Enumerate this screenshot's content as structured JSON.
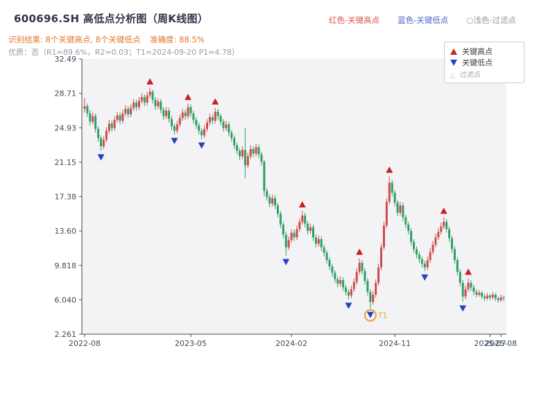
{
  "header": {
    "title": "600696.SH 高低点分析图（周K线图）",
    "legend_high": "红色-关键高点",
    "legend_low": "蓝色-关键低点",
    "legend_filter": "○浅色-过滤点",
    "result_line": "识别结果: 8个关键高点, 8个关键低点",
    "accuracy": "准确度: 88.5%",
    "quality_line": "优质：否（R1=89.6%，R2=0.03；T1=2024-09-20 P1=4.78）"
  },
  "chart_data": {
    "type": "candlestick",
    "title": "600696.SH 高低点分析图（周K线图）",
    "xlabel": "",
    "ylabel": "",
    "grid": false,
    "legend_position": "top-right",
    "ylim": [
      2.261,
      32.49
    ],
    "y_ticks": [
      "32.49",
      "28.71",
      "24.93",
      "21.15",
      "17.38",
      "13.60",
      "9.818",
      "6.040",
      "2.261"
    ],
    "x_ticks": [
      {
        "label": "2022-08",
        "i": 0
      },
      {
        "label": "2023-05",
        "i": 39
      },
      {
        "label": "2024-02",
        "i": 76
      },
      {
        "label": "2024-11",
        "i": 114
      },
      {
        "label": "2025-07",
        "i": 149
      },
      {
        "label": "2025-08",
        "i": 153
      }
    ],
    "candles": [
      [
        27.0,
        28.2,
        26.6,
        27.3
      ],
      [
        27.3,
        27.6,
        26.1,
        26.5
      ],
      [
        26.5,
        26.9,
        25.2,
        25.6
      ],
      [
        25.6,
        26.6,
        25.3,
        26.2
      ],
      [
        26.2,
        26.5,
        24.4,
        24.8
      ],
      [
        24.8,
        25.1,
        23.4,
        23.8
      ],
      [
        23.8,
        24.1,
        22.4,
        22.9
      ],
      [
        22.9,
        24.0,
        22.6,
        23.6
      ],
      [
        23.6,
        25.0,
        23.3,
        24.6
      ],
      [
        24.6,
        25.8,
        24.3,
        25.4
      ],
      [
        25.4,
        25.7,
        24.5,
        24.9
      ],
      [
        24.9,
        26.2,
        24.6,
        25.8
      ],
      [
        25.8,
        26.7,
        25.5,
        26.3
      ],
      [
        26.3,
        26.6,
        25.3,
        25.7
      ],
      [
        25.7,
        26.9,
        25.4,
        26.5
      ],
      [
        26.5,
        27.4,
        26.2,
        27.0
      ],
      [
        27.0,
        27.3,
        26.0,
        26.4
      ],
      [
        26.4,
        27.5,
        26.1,
        27.1
      ],
      [
        27.1,
        28.1,
        26.8,
        27.7
      ],
      [
        27.7,
        28.0,
        26.8,
        27.2
      ],
      [
        27.2,
        28.3,
        26.9,
        27.9
      ],
      [
        27.9,
        28.7,
        27.6,
        28.3
      ],
      [
        28.3,
        28.6,
        27.3,
        27.7
      ],
      [
        27.7,
        28.9,
        27.4,
        28.5
      ],
      [
        28.5,
        29.3,
        28.2,
        28.9
      ],
      [
        28.9,
        29.1,
        27.6,
        28.0
      ],
      [
        28.0,
        28.3,
        26.9,
        27.3
      ],
      [
        27.3,
        28.2,
        27.0,
        27.8
      ],
      [
        27.8,
        28.1,
        26.5,
        26.9
      ],
      [
        26.9,
        27.2,
        25.8,
        26.2
      ],
      [
        26.2,
        27.2,
        25.9,
        26.8
      ],
      [
        26.8,
        27.1,
        25.5,
        25.9
      ],
      [
        25.9,
        26.2,
        24.7,
        25.1
      ],
      [
        25.1,
        25.4,
        24.2,
        24.6
      ],
      [
        24.6,
        25.7,
        24.3,
        25.3
      ],
      [
        25.3,
        26.4,
        25.0,
        26.0
      ],
      [
        26.0,
        27.0,
        25.7,
        26.6
      ],
      [
        26.6,
        26.9,
        25.8,
        26.2
      ],
      [
        26.2,
        27.6,
        25.9,
        27.2
      ],
      [
        27.2,
        27.5,
        26.1,
        26.5
      ],
      [
        26.5,
        26.8,
        25.4,
        25.8
      ],
      [
        25.8,
        26.1,
        24.8,
        25.2
      ],
      [
        25.2,
        25.5,
        24.2,
        24.6
      ],
      [
        24.6,
        24.9,
        23.7,
        24.1
      ],
      [
        24.1,
        25.2,
        23.8,
        24.8
      ],
      [
        24.8,
        25.9,
        24.5,
        25.5
      ],
      [
        25.5,
        26.5,
        25.2,
        26.1
      ],
      [
        26.1,
        26.4,
        25.3,
        25.7
      ],
      [
        25.7,
        27.1,
        25.4,
        26.7
      ],
      [
        26.7,
        27.0,
        25.8,
        26.2
      ],
      [
        26.2,
        26.5,
        25.2,
        25.6
      ],
      [
        25.6,
        25.9,
        24.5,
        24.9
      ],
      [
        24.9,
        25.7,
        24.6,
        25.3
      ],
      [
        25.3,
        25.6,
        24.0,
        24.4
      ],
      [
        24.4,
        24.7,
        23.4,
        23.8
      ],
      [
        23.8,
        24.1,
        22.6,
        23.0
      ],
      [
        23.0,
        23.3,
        22.0,
        22.4
      ],
      [
        22.4,
        22.7,
        21.4,
        21.8
      ],
      [
        21.8,
        22.9,
        21.5,
        22.5
      ],
      [
        22.5,
        24.9,
        19.4,
        20.8
      ],
      [
        20.8,
        22.2,
        20.5,
        21.8
      ],
      [
        21.8,
        23.0,
        21.5,
        22.6
      ],
      [
        22.6,
        22.9,
        21.7,
        22.1
      ],
      [
        22.1,
        23.2,
        21.8,
        22.8
      ],
      [
        22.8,
        23.1,
        21.6,
        22.0
      ],
      [
        22.0,
        22.3,
        20.8,
        21.2
      ],
      [
        21.2,
        21.4,
        17.4,
        18.0
      ],
      [
        18.0,
        18.3,
        16.9,
        17.3
      ],
      [
        17.3,
        17.6,
        16.2,
        16.6
      ],
      [
        16.6,
        17.6,
        16.3,
        17.2
      ],
      [
        17.2,
        17.5,
        16.0,
        16.4
      ],
      [
        16.4,
        16.7,
        15.1,
        15.5
      ],
      [
        15.5,
        15.8,
        13.9,
        14.3
      ],
      [
        14.3,
        14.6,
        12.8,
        13.2
      ],
      [
        13.2,
        13.5,
        10.9,
        11.8
      ],
      [
        11.8,
        13.0,
        11.5,
        12.6
      ],
      [
        12.6,
        13.8,
        12.3,
        13.4
      ],
      [
        13.4,
        13.7,
        12.5,
        12.9
      ],
      [
        12.9,
        14.2,
        12.6,
        13.8
      ],
      [
        13.8,
        15.0,
        13.5,
        14.6
      ],
      [
        14.6,
        15.8,
        14.3,
        15.3
      ],
      [
        15.3,
        15.6,
        14.0,
        14.4
      ],
      [
        14.4,
        14.7,
        13.2,
        13.6
      ],
      [
        13.6,
        14.4,
        13.3,
        14.0
      ],
      [
        14.0,
        14.3,
        12.5,
        12.9
      ],
      [
        12.9,
        13.2,
        11.8,
        12.2
      ],
      [
        12.2,
        13.1,
        11.9,
        12.7
      ],
      [
        12.7,
        13.0,
        11.4,
        11.8
      ],
      [
        11.8,
        12.1,
        10.8,
        11.2
      ],
      [
        11.2,
        11.5,
        10.0,
        10.4
      ],
      [
        10.4,
        10.7,
        9.3,
        9.7
      ],
      [
        9.7,
        10.0,
        8.6,
        9.0
      ],
      [
        9.0,
        9.3,
        7.9,
        8.3
      ],
      [
        8.3,
        8.6,
        7.4,
        7.8
      ],
      [
        7.8,
        8.6,
        7.5,
        8.2
      ],
      [
        8.2,
        8.5,
        7.0,
        7.4
      ],
      [
        7.4,
        7.7,
        6.5,
        6.9
      ],
      [
        6.9,
        7.2,
        6.1,
        6.5
      ],
      [
        6.5,
        7.6,
        6.2,
        7.2
      ],
      [
        7.2,
        8.4,
        6.9,
        8.0
      ],
      [
        8.0,
        9.5,
        7.7,
        9.1
      ],
      [
        9.1,
        10.6,
        8.8,
        10.1
      ],
      [
        10.1,
        10.4,
        8.8,
        9.2
      ],
      [
        9.2,
        9.5,
        7.7,
        8.1
      ],
      [
        8.1,
        8.4,
        6.5,
        6.9
      ],
      [
        6.9,
        7.2,
        5.1,
        5.8
      ],
      [
        5.8,
        7.0,
        5.5,
        6.6
      ],
      [
        6.6,
        8.3,
        6.3,
        7.9
      ],
      [
        7.9,
        10.0,
        7.6,
        9.6
      ],
      [
        9.6,
        12.2,
        9.3,
        11.8
      ],
      [
        11.8,
        14.6,
        11.5,
        14.2
      ],
      [
        14.2,
        17.2,
        13.9,
        16.8
      ],
      [
        16.8,
        19.6,
        16.5,
        18.9
      ],
      [
        18.9,
        19.2,
        17.4,
        17.8
      ],
      [
        17.8,
        18.1,
        16.3,
        16.7
      ],
      [
        16.7,
        17.0,
        15.2,
        15.6
      ],
      [
        15.6,
        16.8,
        15.3,
        16.4
      ],
      [
        16.4,
        16.7,
        14.7,
        15.1
      ],
      [
        15.1,
        15.4,
        13.9,
        14.3
      ],
      [
        14.3,
        14.6,
        13.2,
        13.6
      ],
      [
        13.6,
        13.9,
        12.0,
        12.4
      ],
      [
        12.4,
        12.7,
        11.2,
        11.6
      ],
      [
        11.6,
        11.9,
        10.6,
        11.0
      ],
      [
        11.0,
        11.3,
        10.1,
        10.5
      ],
      [
        10.5,
        10.8,
        9.6,
        10.0
      ],
      [
        10.0,
        10.3,
        9.2,
        9.6
      ],
      [
        9.6,
        10.8,
        9.3,
        10.4
      ],
      [
        10.4,
        11.7,
        10.1,
        11.3
      ],
      [
        11.3,
        12.5,
        11.0,
        12.1
      ],
      [
        12.1,
        13.3,
        11.8,
        12.9
      ],
      [
        12.9,
        13.9,
        12.6,
        13.5
      ],
      [
        13.5,
        14.5,
        13.2,
        14.1
      ],
      [
        14.1,
        15.1,
        13.8,
        14.6
      ],
      [
        14.6,
        14.9,
        13.4,
        13.8
      ],
      [
        13.8,
        14.1,
        12.4,
        12.8
      ],
      [
        12.8,
        13.1,
        11.2,
        11.6
      ],
      [
        11.6,
        11.9,
        10.0,
        10.4
      ],
      [
        10.4,
        10.7,
        8.7,
        9.1
      ],
      [
        9.1,
        9.4,
        7.5,
        7.9
      ],
      [
        7.9,
        8.2,
        5.8,
        6.4
      ],
      [
        6.4,
        7.6,
        6.1,
        7.2
      ],
      [
        7.2,
        8.4,
        6.9,
        7.9
      ],
      [
        7.9,
        8.2,
        7.0,
        7.4
      ],
      [
        7.4,
        7.7,
        6.5,
        6.9
      ],
      [
        6.9,
        7.2,
        6.3,
        6.6
      ],
      [
        6.6,
        7.1,
        6.4,
        6.8
      ],
      [
        6.8,
        7.0,
        6.1,
        6.4
      ],
      [
        6.4,
        6.7,
        5.9,
        6.2
      ],
      [
        6.2,
        6.8,
        6.0,
        6.5
      ],
      [
        6.5,
        6.7,
        6.0,
        6.3
      ],
      [
        6.3,
        6.9,
        6.1,
        6.6
      ],
      [
        6.6,
        6.8,
        5.9,
        6.2
      ],
      [
        6.2,
        6.4,
        5.7,
        6.0
      ],
      [
        6.0,
        6.6,
        5.8,
        6.3
      ],
      [
        6.3,
        6.5,
        5.9,
        6.2
      ]
    ],
    "key_highs": [
      {
        "i": 24,
        "price": 29.3
      },
      {
        "i": 38,
        "price": 27.6
      },
      {
        "i": 48,
        "price": 27.1
      },
      {
        "i": 80,
        "price": 15.8
      },
      {
        "i": 101,
        "price": 10.6
      },
      {
        "i": 112,
        "price": 19.6
      },
      {
        "i": 132,
        "price": 15.1
      },
      {
        "i": 141,
        "price": 8.4
      }
    ],
    "key_lows": [
      {
        "i": 6,
        "price": 22.4
      },
      {
        "i": 33,
        "price": 24.2
      },
      {
        "i": 43,
        "price": 23.7
      },
      {
        "i": 74,
        "price": 10.9
      },
      {
        "i": 97,
        "price": 6.1
      },
      {
        "i": 105,
        "price": 5.1
      },
      {
        "i": 125,
        "price": 9.2
      },
      {
        "i": 139,
        "price": 5.8
      }
    ],
    "t1": {
      "i": 105,
      "label": "T1"
    },
    "colors": {
      "up": "#cf4a4a",
      "down": "#2f9e63",
      "key_high": "#cc2020",
      "key_low": "#2b3fc4",
      "t1": "#e6a23c",
      "plot_bg": "#f3f3f5",
      "axis": "#444444",
      "tick_text": "#3c4a5a"
    },
    "legend_items": [
      {
        "label": "关键高点",
        "marker": "up-triangle"
      },
      {
        "label": "关键低点",
        "marker": "down-triangle"
      },
      {
        "label": "过滤点",
        "marker": "hollow-triangle"
      }
    ]
  }
}
